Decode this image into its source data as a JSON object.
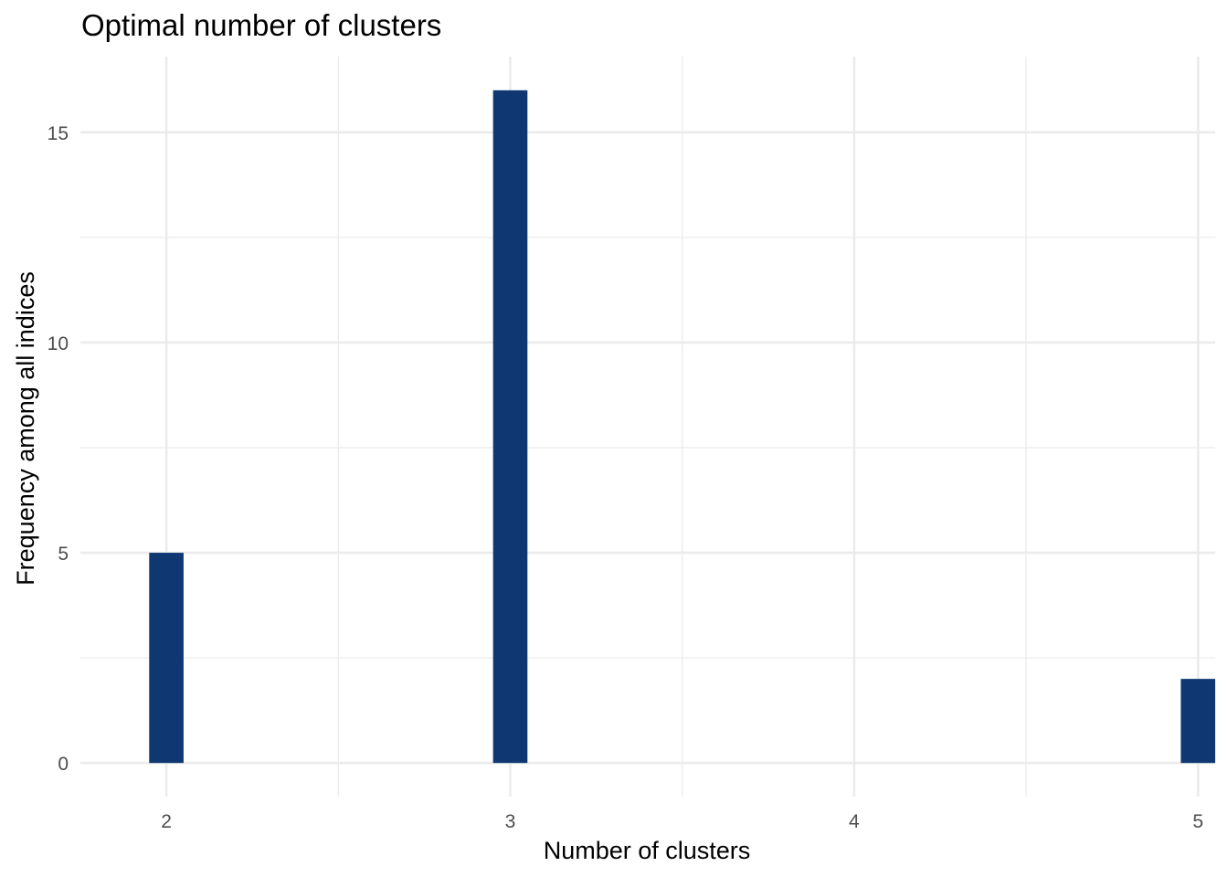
{
  "chart_data": {
    "type": "bar",
    "title": "Optimal number of clusters",
    "xlabel": "Number of clusters",
    "ylabel": "Frequency among all indices",
    "categories": [
      "2",
      "3",
      "5"
    ],
    "x": [
      2,
      3,
      5
    ],
    "values": [
      5,
      16,
      2
    ],
    "xlim": [
      1.75,
      5.05
    ],
    "ylim": [
      -0.8,
      16.8
    ],
    "x_ticks": [
      2,
      3,
      4,
      5
    ],
    "x_tick_labels": [
      "2",
      "3",
      "4",
      "5"
    ],
    "y_ticks": [
      0,
      5,
      10,
      15
    ],
    "y_tick_labels": [
      "0",
      "5",
      "10",
      "15"
    ],
    "bar_width": 0.1,
    "bar_color": "#0f3873",
    "grid": true,
    "legend": "none"
  }
}
